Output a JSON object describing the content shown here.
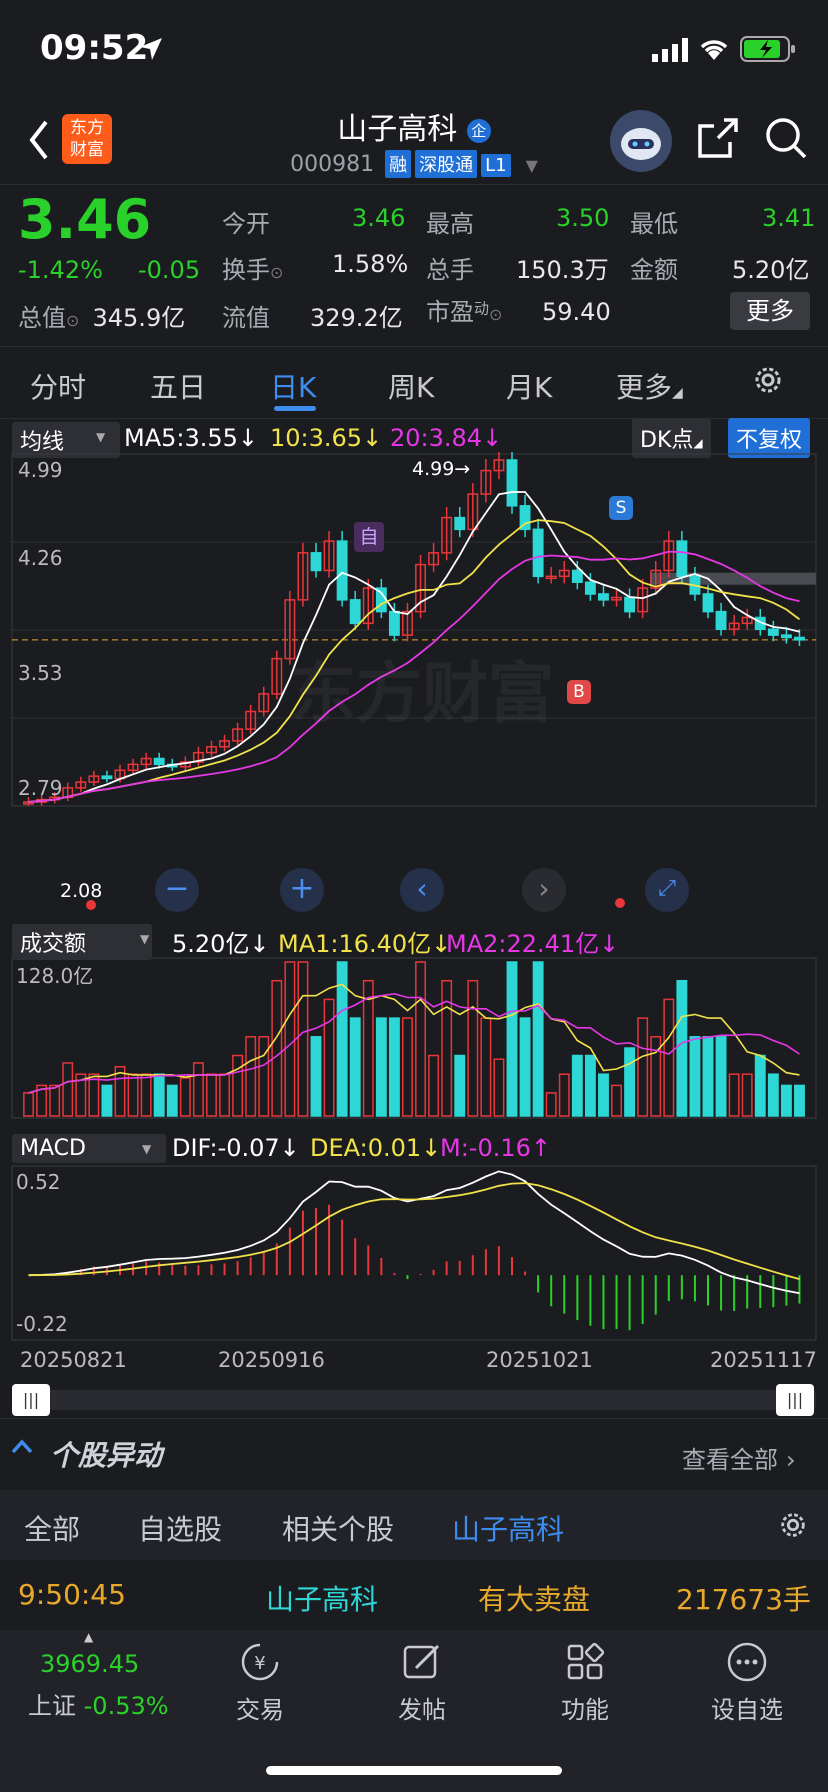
{
  "status_bar": {
    "time": "09:52"
  },
  "header": {
    "stock_name": "山子高科",
    "badge_name": "企",
    "code": "000981",
    "tags": [
      "融",
      "深股通",
      "L1"
    ]
  },
  "quote": {
    "price": "3.46",
    "change_pct": "-1.42%",
    "change": "-0.05",
    "open_label": "今开",
    "open": "3.46",
    "high_label": "最高",
    "high": "3.50",
    "low_label": "最低",
    "low": "3.41",
    "turnover_label": "换手",
    "turnover": "1.58%",
    "volume_label": "总手",
    "volume": "150.3万",
    "amount_label": "金额",
    "amount": "5.20亿",
    "mcap_label": "总值",
    "mcap": "345.9亿",
    "float_label": "流值",
    "float": "329.2亿",
    "pe_label": "市盈",
    "pe_sup": "动",
    "pe": "59.40",
    "more_label": "更多"
  },
  "period_tabs": [
    "分时",
    "五日",
    "日K",
    "周K",
    "月K",
    "更多"
  ],
  "active_tab": "日K",
  "kline_header": {
    "indicator": "均线",
    "ma5": "MA5:3.55↓",
    "ma10": "10:3.65↓",
    "ma20": "20:3.84↓",
    "dk_label": "DK点",
    "adjust_label": "不复权"
  },
  "kline_axis": {
    "y_labels": [
      "4.99",
      "4.26",
      "3.53",
      "2.79"
    ],
    "max_note": "4.99→",
    "min_note": "2.08",
    "mark_self": "自",
    "mark_s": "S",
    "mark_b": "B"
  },
  "volume_header": {
    "indicator": "成交额",
    "value": "5.20亿↓",
    "ma1": "MA1:16.40亿↓",
    "ma2": "MA2:22.41亿↓",
    "y_label": "128.0亿"
  },
  "macd_header": {
    "indicator": "MACD",
    "dif": "DIF:-0.07↓",
    "dea": "DEA:0.01↓",
    "m": "M:-0.16↑",
    "y_top": "0.52",
    "y_bottom": "-0.22"
  },
  "x_dates": [
    "20250821",
    "20250916",
    "20251021",
    "20251117"
  ],
  "section": {
    "title": "个股异动",
    "view_all": "查看全部"
  },
  "filter_tabs": [
    "全部",
    "自选股",
    "相关个股",
    "山子高科"
  ],
  "alert": {
    "time": "9:50:45",
    "name": "山子高科",
    "event": "有大卖盘",
    "volume": "217673手"
  },
  "index_quote": {
    "value": "3969.45",
    "name": "上证",
    "change": "-0.53%"
  },
  "bottom_nav": [
    "交易",
    "发帖",
    "功能",
    "设自选"
  ],
  "colors": {
    "up": "#e8363a",
    "down": "#2cd7d6",
    "green": "#2bd12b",
    "accent": "#3d8cf0"
  },
  "chart_data": {
    "type": "candlestick",
    "dates": [
      "20250821",
      "20250916",
      "20251021",
      "20251117"
    ],
    "close_approx": [
      2.08,
      2.1,
      2.12,
      2.2,
      2.25,
      2.3,
      2.28,
      2.35,
      2.4,
      2.45,
      2.4,
      2.38,
      2.42,
      2.5,
      2.55,
      2.6,
      2.7,
      2.85,
      3.0,
      3.3,
      3.8,
      4.2,
      4.05,
      4.3,
      3.8,
      3.6,
      3.9,
      3.7,
      3.5,
      3.7,
      4.1,
      4.2,
      4.5,
      4.4,
      4.7,
      4.9,
      4.99,
      4.6,
      4.4,
      4.0,
      4.0,
      4.05,
      3.95,
      3.85,
      3.8,
      3.82,
      3.7,
      3.9,
      4.05,
      4.3,
      4.0,
      3.85,
      3.7,
      3.55,
      3.6,
      3.65,
      3.55,
      3.5,
      3.48,
      3.46
    ],
    "price_range": [
      2.08,
      4.99
    ],
    "volume_max": "128.0亿",
    "macd_range": [
      -0.22,
      0.52
    ]
  }
}
